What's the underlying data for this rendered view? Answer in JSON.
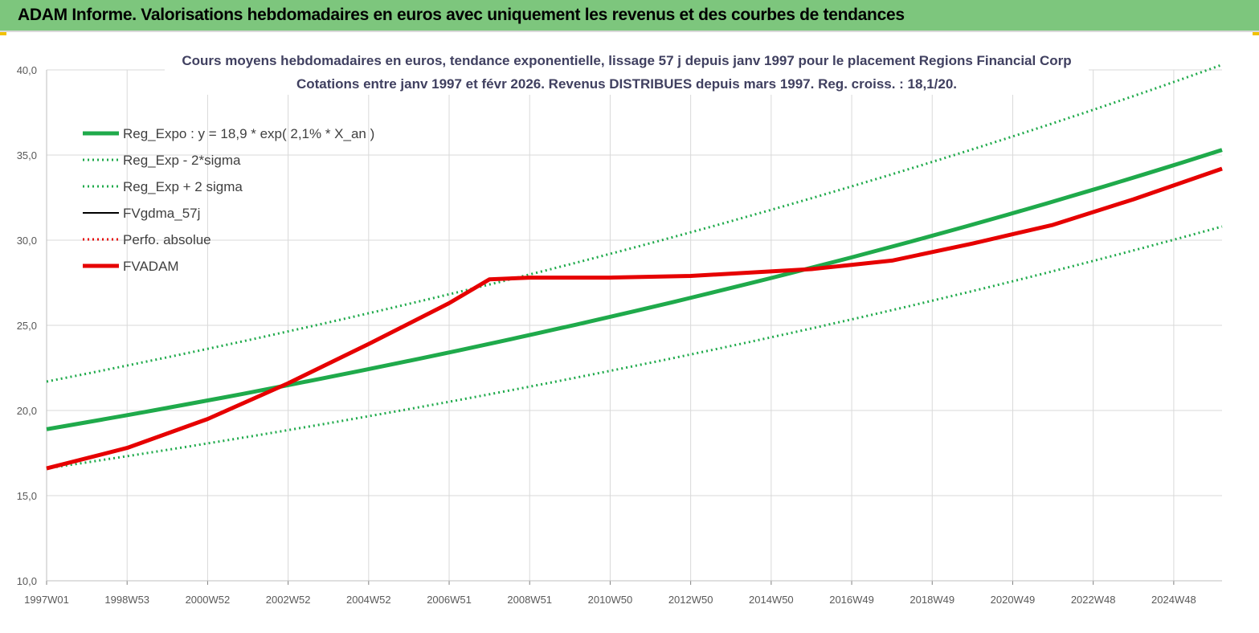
{
  "header": {
    "title": "ADAM Informe. Valorisations hebdomadaires en euros avec uniquement les revenus et des courbes de tendances"
  },
  "chart_data": {
    "type": "line",
    "title_line1": "Cours moyens hebdomadaires en euros, tendance exponentielle, lissage 57 j depuis janv 1997 pour le placement Regions Financial Corp",
    "title_line2": "Cotations entre janv 1997 et févr 2026. Revenus DISTRIBUES depuis mars 1997. Reg. croiss. : 18,1/20.",
    "xlabel": "",
    "ylabel": "",
    "x_range": [
      1997.0,
      2026.2
    ],
    "ylim": [
      10,
      40
    ],
    "y_ticks": [
      "10,0",
      "15,0",
      "20,0",
      "25,0",
      "30,0",
      "35,0",
      "40,0"
    ],
    "y_tick_values": [
      10,
      15,
      20,
      25,
      30,
      35,
      40
    ],
    "x_ticks": [
      "1997W01",
      "1998W53",
      "2000W52",
      "2002W52",
      "2004W52",
      "2006W51",
      "2008W51",
      "2010W50",
      "2012W50",
      "2014W50",
      "2016W49",
      "2018W49",
      "2020W49",
      "2022W48",
      "2024W48"
    ],
    "x_tick_values": [
      1997.0,
      1999.0,
      2001.0,
      2003.0,
      2005.0,
      2007.0,
      2009.0,
      2011.0,
      2013.0,
      2015.0,
      2017.0,
      2019.0,
      2021.0,
      2023.0,
      2025.0
    ],
    "grid": true,
    "legend_position": "top-left",
    "series": [
      {
        "name": "Reg_Expo : y = 18,9 * exp( 2,1% *  X_an )",
        "color": "#1faa4b",
        "style": "solid-thick",
        "x": [
          1997.0,
          2026.2
        ],
        "values": [
          18.9,
          35.3
        ]
      },
      {
        "name": "Reg_Exp - 2*sigma",
        "color": "#1faa4b",
        "style": "dotted",
        "x": [
          1997.0,
          2026.2
        ],
        "values": [
          16.6,
          30.8
        ]
      },
      {
        "name": "Reg_Exp + 2 sigma",
        "color": "#1faa4b",
        "style": "dotted",
        "x": [
          1997.0,
          2026.2
        ],
        "values": [
          21.7,
          40.3
        ]
      },
      {
        "name": "FVgdma_57j",
        "color": "#000000",
        "style": "solid",
        "x": [
          1997.0,
          1999.0,
          2001.0,
          2003.0,
          2005.0,
          2007.0,
          2008.0,
          2009.0,
          2011.0,
          2013.0,
          2014.5,
          2016.0,
          2018.0,
          2020.0,
          2022.0,
          2024.0,
          2026.2
        ],
        "values": [
          16.6,
          17.8,
          19.5,
          21.6,
          23.9,
          26.3,
          27.7,
          27.8,
          27.8,
          27.9,
          28.1,
          28.3,
          28.8,
          29.8,
          30.9,
          32.4,
          34.2
        ]
      },
      {
        "name": "Perfo. absolue",
        "color": "#e60000",
        "style": "dotted",
        "x": [],
        "values": []
      },
      {
        "name": "FVADAM",
        "color": "#e60000",
        "style": "solid-thick",
        "x": [
          1997.0,
          1999.0,
          2001.0,
          2003.0,
          2005.0,
          2007.0,
          2008.0,
          2009.0,
          2011.0,
          2013.0,
          2014.5,
          2016.0,
          2018.0,
          2020.0,
          2022.0,
          2024.0,
          2026.2
        ],
        "values": [
          16.6,
          17.8,
          19.5,
          21.6,
          23.9,
          26.3,
          27.7,
          27.8,
          27.8,
          27.9,
          28.1,
          28.3,
          28.8,
          29.8,
          30.9,
          32.4,
          34.2
        ]
      }
    ]
  }
}
